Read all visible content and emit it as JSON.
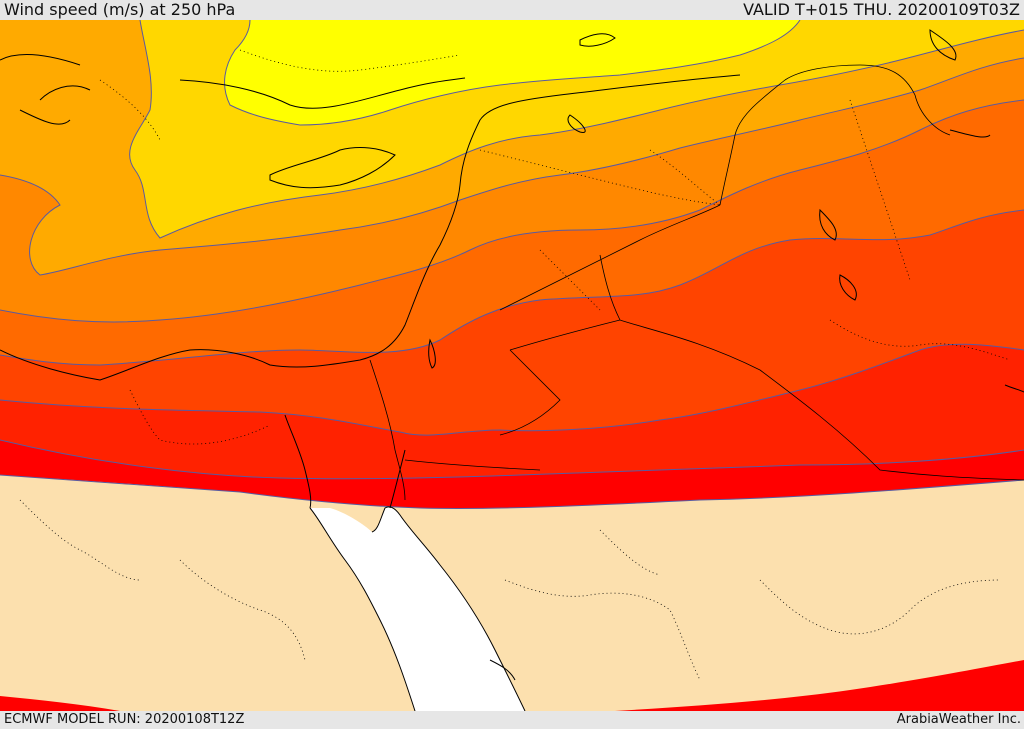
{
  "header": {
    "title": "Wind speed (m/s) at 250 hPa",
    "valid_time": "VALID T+015 THU. 20200109T03Z"
  },
  "footer": {
    "model_run": "ECMWF MODEL RUN: 20200108T12Z",
    "credit": "ArabiaWeather Inc."
  },
  "colors": {
    "land_light": "#fce0ae",
    "sea": "#ffffff",
    "band_yellow": "#ffff00",
    "band_gold": "#ffd700",
    "band_amber": "#ffaa00",
    "band_orange": "#ff8800",
    "band_dark_orange": "#ff6a00",
    "band_red_orange": "#ff4400",
    "band_red": "#ff2200",
    "band_pure_red": "#ff0000",
    "contour_line": "#5a5aa0",
    "coastline": "#000000",
    "border": "#000000"
  }
}
